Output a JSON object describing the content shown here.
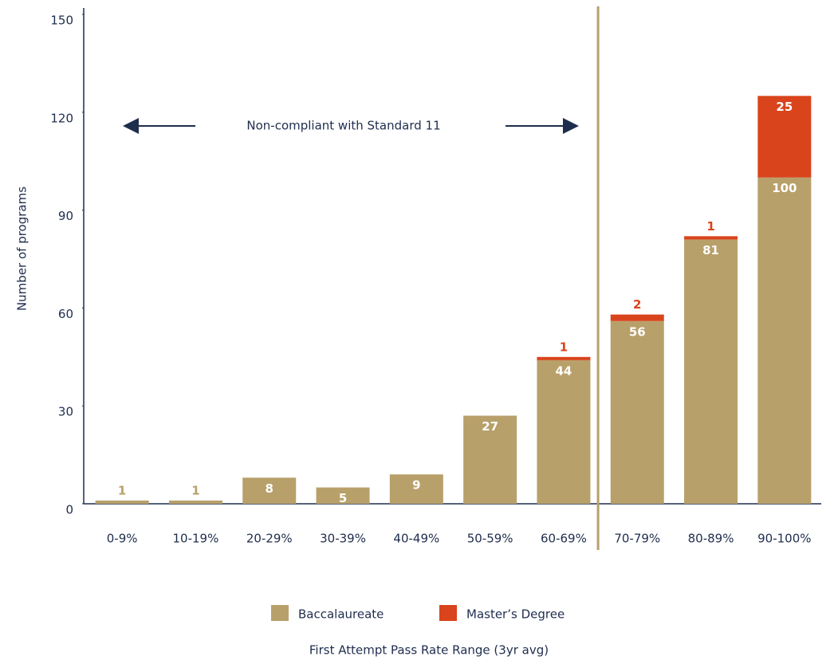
{
  "chart_data": {
    "type": "stacked_bar",
    "categories": [
      "0-9%",
      "10-19%",
      "20-29%",
      "30-39%",
      "40-49%",
      "50-59%",
      "60-69%",
      "70-79%",
      "80-89%",
      "90-100%"
    ],
    "series": [
      {
        "name": "Baccalaureate",
        "color": "#b8a06a",
        "values": [
          1,
          1,
          8,
          5,
          9,
          27,
          44,
          56,
          81,
          100
        ]
      },
      {
        "name": "Master’s Degree",
        "color": "#d9441c",
        "values": [
          null,
          null,
          null,
          null,
          null,
          null,
          1,
          2,
          1,
          25
        ]
      }
    ],
    "ylim": [
      0,
      150
    ],
    "yticks": [
      0,
      30,
      60,
      90,
      120,
      150
    ],
    "y_label": "Number of programs",
    "x_label": "First Attempt Pass Rate Range (3yr avg)",
    "annotation": "Non-compliant with Standard 11",
    "legend": "bottom"
  }
}
